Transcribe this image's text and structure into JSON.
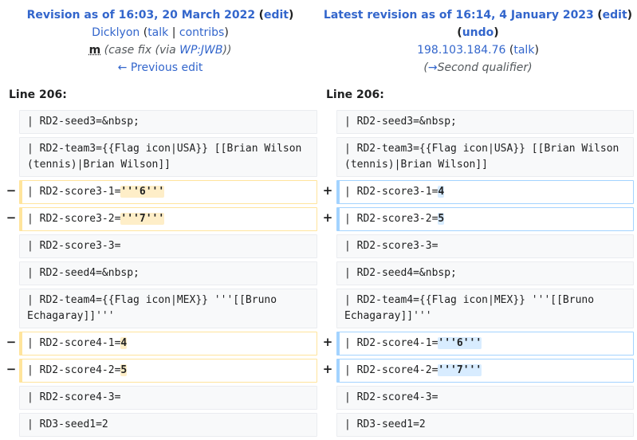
{
  "left_header": {
    "title": "Revision as of 16:03, 20 March 2022",
    "edit": "edit",
    "user": "Dicklyon",
    "talk": "talk",
    "contribs": "contribs",
    "minor": "m",
    "comment_prefix": "(case fix (via ",
    "comment_link": "WP:JWB",
    "comment_suffix": "))",
    "prev_edit": "← Previous edit"
  },
  "right_header": {
    "title": "Latest revision as of 16:14, 4 January 2023",
    "edit": "edit",
    "undo": "undo",
    "user": "198.103.184.76",
    "talk": "talk",
    "comment_arrow": "→",
    "comment_text": "Second qualifier"
  },
  "line_left": "Line 206:",
  "line_right": "Line 206:",
  "rows": [
    {
      "left": "| RD2-seed3=&nbsp;",
      "right": "| RD2-seed3=&nbsp;"
    },
    {
      "left": "| RD2-team3={{Flag icon|USA}} [[Brian Wilson (tennis)|Brian Wilson]]",
      "right": "| RD2-team3={{Flag icon|USA}} [[Brian Wilson (tennis)|Brian Wilson]]"
    },
    {
      "left_prefix": "| RD2-score3-1=",
      "left_hl": "'''6'''",
      "right_prefix": "| RD2-score3-1=",
      "right_hl": "4"
    },
    {
      "left_prefix": "| RD2-score3-2=",
      "left_hl": "'''7'''",
      "right_prefix": "| RD2-score3-2=",
      "right_hl": "5"
    },
    {
      "left": "| RD2-score3-3=",
      "right": "| RD2-score3-3="
    },
    {
      "left": "| RD2-seed4=&nbsp;",
      "right": "| RD2-seed4=&nbsp;"
    },
    {
      "left": "| RD2-team4={{Flag icon|MEX}} '''[[Bruno Echagaray]]'''",
      "right": "| RD2-team4={{Flag icon|MEX}} '''[[Bruno Echagaray]]'''"
    },
    {
      "left_prefix": "| RD2-score4-1=",
      "left_hl": "4",
      "right_prefix": "| RD2-score4-1=",
      "right_hl": "'''6'''"
    },
    {
      "left_prefix": "| RD2-score4-2=",
      "left_hl": "5",
      "right_prefix": "| RD2-score4-2=",
      "right_hl": "'''7'''"
    },
    {
      "left": "| RD2-score4-3=",
      "right": "| RD2-score4-3="
    },
    {
      "left": "| RD3-seed1=2",
      "right": "| RD3-seed1=2"
    }
  ],
  "marker_minus": "−",
  "marker_plus": "+"
}
